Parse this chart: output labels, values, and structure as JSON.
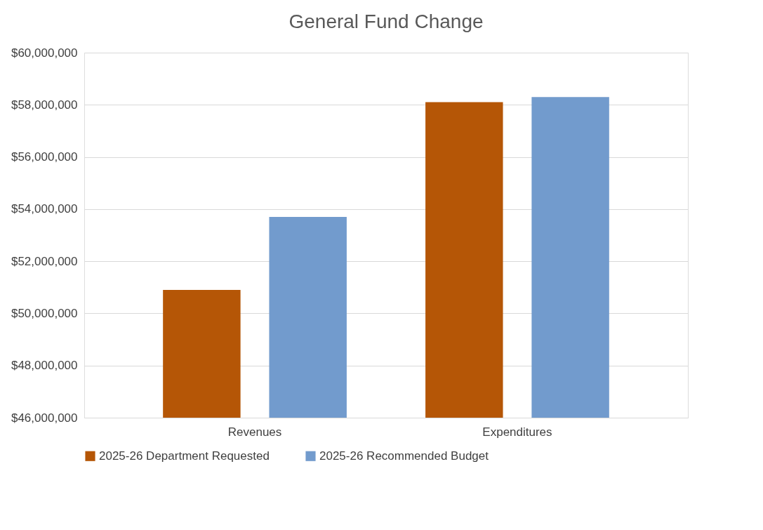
{
  "chart_data": {
    "type": "bar",
    "title": "General Fund Change",
    "categories": [
      "Revenues",
      "Expenditures"
    ],
    "series": [
      {
        "name": "2025-26 Department Requested",
        "color": "#b55606",
        "values": [
          50900000,
          58100000
        ]
      },
      {
        "name": "2025-26 Recommended Budget",
        "color": "#729bcd",
        "values": [
          53700000,
          58300000
        ]
      }
    ],
    "ylim": [
      46000000,
      60000000
    ],
    "yticks": [
      {
        "value": 46000000,
        "label": "$46,000,000"
      },
      {
        "value": 48000000,
        "label": "$48,000,000"
      },
      {
        "value": 50000000,
        "label": "$50,000,000"
      },
      {
        "value": 52000000,
        "label": "$52,000,000"
      },
      {
        "value": 54000000,
        "label": "$54,000,000"
      },
      {
        "value": 56000000,
        "label": "$56,000,000"
      },
      {
        "value": 58000000,
        "label": "$58,000,000"
      },
      {
        "value": 60000000,
        "label": "$60,000,000"
      }
    ],
    "grid": "y",
    "legend": "bottom"
  }
}
